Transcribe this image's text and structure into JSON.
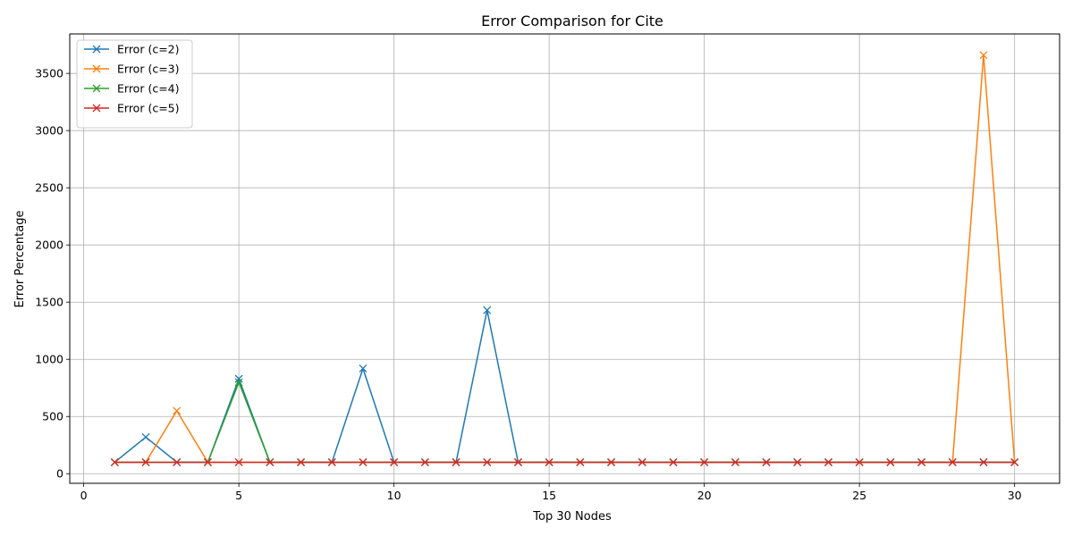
{
  "chart_data": {
    "type": "line",
    "title": "Error Comparison for Cite",
    "xlabel": "Top 30 Nodes",
    "ylabel": "Error Percentage",
    "xlim": [
      -0.45,
      31.45
    ],
    "ylim": [
      -84,
      3845
    ],
    "xticks": [
      0,
      5,
      10,
      15,
      20,
      25,
      30
    ],
    "yticks": [
      0,
      500,
      1000,
      1500,
      2000,
      2500,
      3000,
      3500
    ],
    "grid": true,
    "legend": "top-left",
    "marker": "x",
    "x": [
      1,
      2,
      3,
      4,
      5,
      6,
      7,
      8,
      9,
      10,
      11,
      12,
      13,
      14,
      15,
      16,
      17,
      18,
      19,
      20,
      21,
      22,
      23,
      24,
      25,
      26,
      27,
      28,
      29,
      30
    ],
    "series": [
      {
        "name": "Error (c=2)",
        "color": "#1f77b4",
        "values": [
          100,
          320,
          100,
          100,
          830,
          100,
          100,
          100,
          920,
          100,
          100,
          100,
          1430,
          100,
          100,
          100,
          100,
          100,
          100,
          100,
          100,
          100,
          100,
          100,
          100,
          100,
          100,
          100,
          100,
          100
        ]
      },
      {
        "name": "Error (c=3)",
        "color": "#ff7f0e",
        "values": [
          100,
          100,
          550,
          100,
          100,
          100,
          100,
          100,
          100,
          100,
          100,
          100,
          100,
          100,
          100,
          100,
          100,
          100,
          100,
          100,
          100,
          100,
          100,
          100,
          100,
          100,
          100,
          100,
          3660,
          100
        ]
      },
      {
        "name": "Error (c=4)",
        "color": "#2ca02c",
        "values": [
          100,
          100,
          100,
          100,
          800,
          100,
          100,
          100,
          100,
          100,
          100,
          100,
          100,
          100,
          100,
          100,
          100,
          100,
          100,
          100,
          100,
          100,
          100,
          100,
          100,
          100,
          100,
          100,
          100,
          100
        ]
      },
      {
        "name": "Error (c=5)",
        "color": "#d62728",
        "values": [
          100,
          100,
          100,
          100,
          100,
          100,
          100,
          100,
          100,
          100,
          100,
          100,
          100,
          100,
          100,
          100,
          100,
          100,
          100,
          100,
          100,
          100,
          100,
          100,
          100,
          100,
          100,
          100,
          100,
          100
        ]
      }
    ]
  }
}
